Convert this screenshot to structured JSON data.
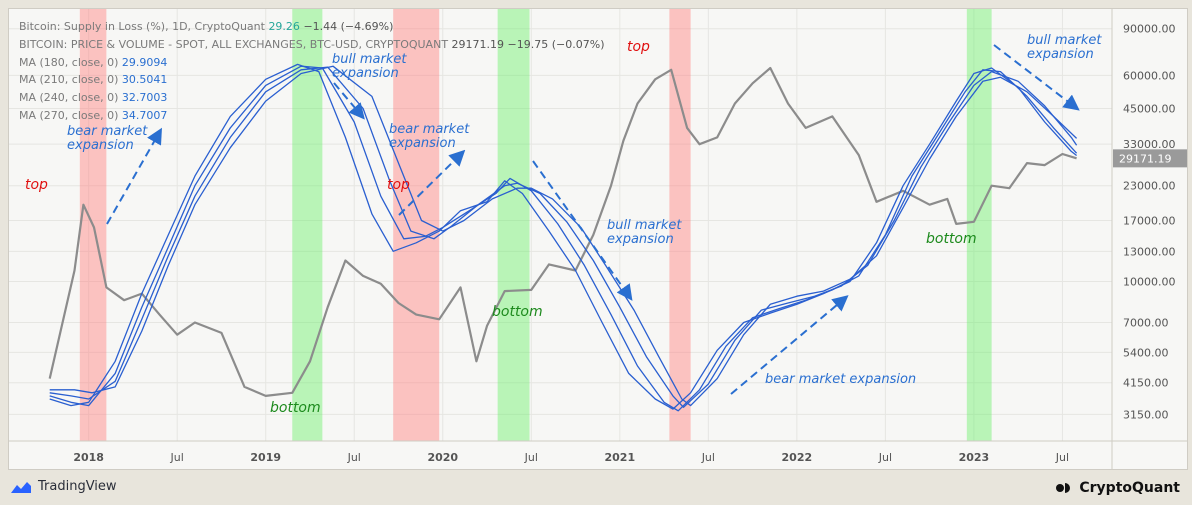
{
  "header": {
    "title_line": "Bitcoin: Supply in Loss (%), 1D, CryptoQuant",
    "title_value": "29.26",
    "title_change": "−1.44 (−4.69%)",
    "price_line": "BITCOIN: PRICE & VOLUME - SPOT, ALL EXCHANGES, BTC-USD, CRYPTOQUANT",
    "price_value": "29171.19",
    "price_change": "−19.75 (−0.07%)",
    "ma": [
      {
        "label": "MA (180, close, 0)",
        "value": "29.9094"
      },
      {
        "label": "MA (210, close, 0)",
        "value": "30.5041"
      },
      {
        "label": "MA (240, close, 0)",
        "value": "32.7003"
      },
      {
        "label": "MA (270, close, 0)",
        "value": "34.7007"
      }
    ]
  },
  "footer": {
    "tradingview": "TradingView",
    "cryptoquant": "CryptoQuant"
  },
  "chart_data": {
    "type": "line",
    "title": "Bitcoin: Supply in Loss (%), 1D, CryptoQuant",
    "x_ticks": [
      "2018",
      "Jul",
      "2019",
      "Jul",
      "2020",
      "Jul",
      "2021",
      "Jul",
      "2022",
      "Jul",
      "2023",
      "Jul"
    ],
    "y_scale": "log",
    "y_ticks": [
      "90000.00",
      "60000.00",
      "45000.00",
      "33000.00",
      "23000.00",
      "17000.00",
      "13000.00",
      "10000.00",
      "7000.00",
      "5400.00",
      "4150.00",
      "3150.00"
    ],
    "y_tick_values": [
      90000,
      60000,
      45000,
      33000,
      23000,
      17000,
      13000,
      10000,
      7000,
      5400,
      4150,
      3150
    ],
    "ylim": [
      2500,
      105000
    ],
    "current_price_label": "29171.19",
    "colors": {
      "price": "#8c8c8c",
      "ma": "#2a5fd0",
      "top_band": "#ff8080",
      "bottom_band": "#6cf06c",
      "annotation_blue": "#2a6fd0",
      "annotation_red": "#e01010",
      "annotation_green": "#1d8a1d"
    },
    "bands": [
      {
        "kind": "top",
        "start": 2017.95,
        "end": 2018.1
      },
      {
        "kind": "bottom",
        "start": 2019.15,
        "end": 2019.32
      },
      {
        "kind": "top",
        "start": 2019.72,
        "end": 2019.98
      },
      {
        "kind": "bottom",
        "start": 2020.31,
        "end": 2020.49
      },
      {
        "kind": "top",
        "start": 2021.28,
        "end": 2021.4
      },
      {
        "kind": "bottom",
        "start": 2022.96,
        "end": 2023.1
      }
    ],
    "series": [
      {
        "name": "BTC price (USD)",
        "points": [
          [
            2017.78,
            4300
          ],
          [
            2017.92,
            11000
          ],
          [
            2017.97,
            19500
          ],
          [
            2018.03,
            16000
          ],
          [
            2018.1,
            9500
          ],
          [
            2018.2,
            8500
          ],
          [
            2018.3,
            9000
          ],
          [
            2018.4,
            7500
          ],
          [
            2018.5,
            6300
          ],
          [
            2018.6,
            7000
          ],
          [
            2018.75,
            6400
          ],
          [
            2018.88,
            4000
          ],
          [
            2019.0,
            3700
          ],
          [
            2019.15,
            3800
          ],
          [
            2019.25,
            5000
          ],
          [
            2019.35,
            8000
          ],
          [
            2019.45,
            12000
          ],
          [
            2019.55,
            10500
          ],
          [
            2019.65,
            9800
          ],
          [
            2019.75,
            8300
          ],
          [
            2019.85,
            7500
          ],
          [
            2019.98,
            7200
          ],
          [
            2020.1,
            9500
          ],
          [
            2020.19,
            5000
          ],
          [
            2020.25,
            6800
          ],
          [
            2020.35,
            9200
          ],
          [
            2020.5,
            9300
          ],
          [
            2020.6,
            11600
          ],
          [
            2020.75,
            11000
          ],
          [
            2020.85,
            15000
          ],
          [
            2020.95,
            23000
          ],
          [
            2021.02,
            34000
          ],
          [
            2021.1,
            47000
          ],
          [
            2021.2,
            58000
          ],
          [
            2021.29,
            63000
          ],
          [
            2021.38,
            38000
          ],
          [
            2021.45,
            33000
          ],
          [
            2021.55,
            35000
          ],
          [
            2021.65,
            47000
          ],
          [
            2021.75,
            56000
          ],
          [
            2021.85,
            64000
          ],
          [
            2021.95,
            47000
          ],
          [
            2022.05,
            38000
          ],
          [
            2022.2,
            42000
          ],
          [
            2022.35,
            30000
          ],
          [
            2022.45,
            20000
          ],
          [
            2022.6,
            22000
          ],
          [
            2022.75,
            19500
          ],
          [
            2022.85,
            20500
          ],
          [
            2022.9,
            16500
          ],
          [
            2023.0,
            16800
          ],
          [
            2023.1,
            23000
          ],
          [
            2023.2,
            22500
          ],
          [
            2023.3,
            28000
          ],
          [
            2023.4,
            27500
          ],
          [
            2023.5,
            30300
          ],
          [
            2023.58,
            29171
          ]
        ]
      },
      {
        "name": "MA (180, close, 0)",
        "value": 29.9094,
        "points": [
          [
            2017.78,
            3600
          ],
          [
            2017.9,
            3400
          ],
          [
            2018.0,
            3500
          ],
          [
            2018.15,
            5000
          ],
          [
            2018.3,
            9000
          ],
          [
            2018.45,
            15000
          ],
          [
            2018.6,
            25000
          ],
          [
            2018.8,
            42000
          ],
          [
            2019.0,
            58000
          ],
          [
            2019.18,
            66000
          ],
          [
            2019.3,
            62000
          ],
          [
            2019.45,
            35000
          ],
          [
            2019.6,
            18000
          ],
          [
            2019.72,
            13000
          ],
          [
            2019.85,
            14000
          ],
          [
            2019.98,
            15500
          ],
          [
            2020.1,
            18500
          ],
          [
            2020.25,
            20000
          ],
          [
            2020.35,
            24000
          ],
          [
            2020.45,
            21500
          ],
          [
            2020.6,
            15500
          ],
          [
            2020.75,
            11000
          ],
          [
            2020.9,
            7000
          ],
          [
            2021.05,
            4500
          ],
          [
            2021.2,
            3600
          ],
          [
            2021.3,
            3300
          ],
          [
            2021.4,
            3800
          ],
          [
            2021.55,
            5500
          ],
          [
            2021.7,
            7000
          ],
          [
            2021.85,
            7600
          ],
          [
            2022.0,
            8200
          ],
          [
            2022.15,
            9000
          ],
          [
            2022.3,
            10000
          ],
          [
            2022.45,
            14000
          ],
          [
            2022.6,
            23000
          ],
          [
            2022.75,
            33000
          ],
          [
            2022.9,
            48000
          ],
          [
            2023.0,
            61000
          ],
          [
            2023.1,
            64000
          ],
          [
            2023.25,
            54000
          ],
          [
            2023.4,
            40000
          ],
          [
            2023.55,
            31000
          ],
          [
            2023.58,
            29900
          ]
        ]
      },
      {
        "name": "MA (210, close, 0)",
        "value": 30.5041,
        "points": [
          [
            2017.78,
            3700
          ],
          [
            2017.9,
            3500
          ],
          [
            2018.0,
            3400
          ],
          [
            2018.15,
            4500
          ],
          [
            2018.3,
            8000
          ],
          [
            2018.45,
            13500
          ],
          [
            2018.6,
            23000
          ],
          [
            2018.8,
            38000
          ],
          [
            2019.0,
            55000
          ],
          [
            2019.2,
            65000
          ],
          [
            2019.32,
            64000
          ],
          [
            2019.5,
            40000
          ],
          [
            2019.65,
            21000
          ],
          [
            2019.78,
            14500
          ],
          [
            2019.9,
            14800
          ],
          [
            2020.0,
            16000
          ],
          [
            2020.15,
            18500
          ],
          [
            2020.3,
            21500
          ],
          [
            2020.38,
            24500
          ],
          [
            2020.5,
            22000
          ],
          [
            2020.65,
            16500
          ],
          [
            2020.8,
            11500
          ],
          [
            2020.95,
            7500
          ],
          [
            2021.1,
            4800
          ],
          [
            2021.25,
            3500
          ],
          [
            2021.33,
            3250
          ],
          [
            2021.45,
            3900
          ],
          [
            2021.6,
            5700
          ],
          [
            2021.75,
            7300
          ],
          [
            2021.9,
            7900
          ],
          [
            2022.05,
            8500
          ],
          [
            2022.2,
            9300
          ],
          [
            2022.35,
            10500
          ],
          [
            2022.5,
            15000
          ],
          [
            2022.65,
            25000
          ],
          [
            2022.8,
            36000
          ],
          [
            2022.95,
            52000
          ],
          [
            2023.05,
            63000
          ],
          [
            2023.15,
            62000
          ],
          [
            2023.3,
            50000
          ],
          [
            2023.45,
            38000
          ],
          [
            2023.58,
            30500
          ]
        ]
      },
      {
        "name": "MA (240, close, 0)",
        "value": 32.7003,
        "points": [
          [
            2017.78,
            3800
          ],
          [
            2017.9,
            3700
          ],
          [
            2018.0,
            3600
          ],
          [
            2018.15,
            4200
          ],
          [
            2018.3,
            7200
          ],
          [
            2018.45,
            12500
          ],
          [
            2018.6,
            21000
          ],
          [
            2018.8,
            35000
          ],
          [
            2019.0,
            52000
          ],
          [
            2019.2,
            63000
          ],
          [
            2019.35,
            64500
          ],
          [
            2019.55,
            45000
          ],
          [
            2019.7,
            24000
          ],
          [
            2019.82,
            15500
          ],
          [
            2019.95,
            14500
          ],
          [
            2020.05,
            16200
          ],
          [
            2020.2,
            19500
          ],
          [
            2020.35,
            23000
          ],
          [
            2020.42,
            23500
          ],
          [
            2020.55,
            21500
          ],
          [
            2020.7,
            16800
          ],
          [
            2020.85,
            12000
          ],
          [
            2021.0,
            8000
          ],
          [
            2021.15,
            5200
          ],
          [
            2021.3,
            3700
          ],
          [
            2021.36,
            3350
          ],
          [
            2021.5,
            4100
          ],
          [
            2021.65,
            6000
          ],
          [
            2021.8,
            7800
          ],
          [
            2021.95,
            8300
          ],
          [
            2022.1,
            8800
          ],
          [
            2022.25,
            9600
          ],
          [
            2022.4,
            11500
          ],
          [
            2022.55,
            17000
          ],
          [
            2022.7,
            27000
          ],
          [
            2022.85,
            39000
          ],
          [
            2023.0,
            55000
          ],
          [
            2023.1,
            62000
          ],
          [
            2023.25,
            57000
          ],
          [
            2023.4,
            46000
          ],
          [
            2023.55,
            35000
          ],
          [
            2023.58,
            32700
          ]
        ]
      },
      {
        "name": "MA (270, close, 0)",
        "value": 34.7007,
        "points": [
          [
            2017.78,
            3900
          ],
          [
            2017.92,
            3900
          ],
          [
            2018.02,
            3800
          ],
          [
            2018.15,
            4000
          ],
          [
            2018.3,
            6500
          ],
          [
            2018.45,
            11500
          ],
          [
            2018.6,
            19500
          ],
          [
            2018.8,
            32000
          ],
          [
            2019.0,
            48000
          ],
          [
            2019.2,
            61000
          ],
          [
            2019.38,
            65000
          ],
          [
            2019.6,
            50000
          ],
          [
            2019.75,
            28000
          ],
          [
            2019.88,
            17000
          ],
          [
            2020.0,
            15500
          ],
          [
            2020.12,
            17000
          ],
          [
            2020.28,
            20500
          ],
          [
            2020.42,
            22500
          ],
          [
            2020.5,
            22500
          ],
          [
            2020.62,
            20500
          ],
          [
            2020.78,
            16000
          ],
          [
            2020.92,
            11500
          ],
          [
            2021.08,
            7800
          ],
          [
            2021.22,
            5200
          ],
          [
            2021.35,
            3600
          ],
          [
            2021.4,
            3400
          ],
          [
            2021.55,
            4300
          ],
          [
            2021.7,
            6300
          ],
          [
            2021.85,
            8200
          ],
          [
            2022.0,
            8800
          ],
          [
            2022.15,
            9200
          ],
          [
            2022.3,
            10200
          ],
          [
            2022.45,
            12500
          ],
          [
            2022.6,
            19000
          ],
          [
            2022.75,
            29000
          ],
          [
            2022.9,
            42000
          ],
          [
            2023.05,
            57000
          ],
          [
            2023.15,
            59000
          ],
          [
            2023.3,
            52000
          ],
          [
            2023.45,
            42000
          ],
          [
            2023.58,
            34700
          ]
        ]
      }
    ],
    "annotations": [
      {
        "kind": "red",
        "text": "top"
      },
      {
        "kind": "red",
        "text": "top"
      },
      {
        "kind": "red",
        "text": "top"
      },
      {
        "kind": "green",
        "text": "bottom"
      },
      {
        "kind": "green",
        "text": "bottom"
      },
      {
        "kind": "green",
        "text": "bottom"
      },
      {
        "kind": "blue",
        "text": "bear market"
      },
      {
        "kind": "blue",
        "text": "expansion"
      },
      {
        "kind": "blue",
        "text": "bull market"
      },
      {
        "kind": "blue",
        "text": "expansion"
      },
      {
        "kind": "blue",
        "text": "bear market"
      },
      {
        "kind": "blue",
        "text": "expansion"
      },
      {
        "kind": "blue",
        "text": "bull market"
      },
      {
        "kind": "blue",
        "text": "expansion"
      },
      {
        "kind": "blue",
        "text": "bear market expansion"
      },
      {
        "kind": "blue",
        "text": "bull market"
      },
      {
        "kind": "blue",
        "text": "expansion"
      }
    ]
  }
}
